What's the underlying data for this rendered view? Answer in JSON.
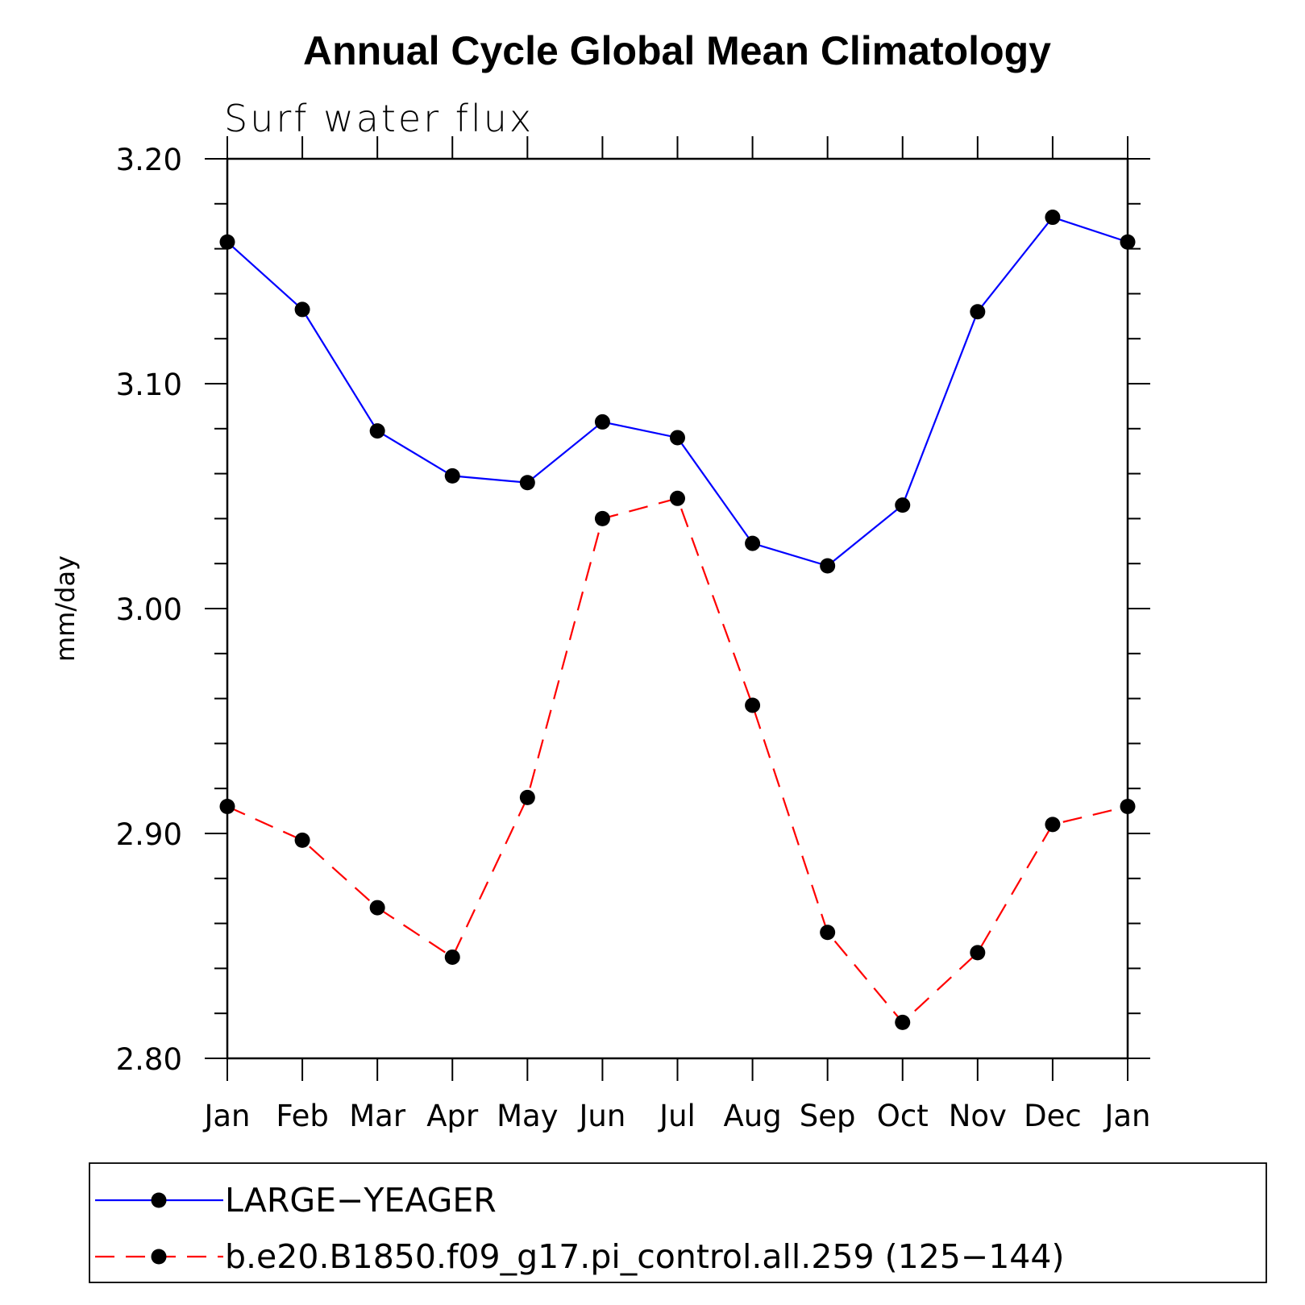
{
  "chart_data": {
    "type": "line",
    "title": "Annual Cycle Global Mean Climatology",
    "subtitle": "Surf water flux",
    "xlabel": "",
    "ylabel": "mm/day",
    "categories": [
      "Jan",
      "Feb",
      "Mar",
      "Apr",
      "May",
      "Jun",
      "Jul",
      "Aug",
      "Sep",
      "Oct",
      "Nov",
      "Dec",
      "Jan"
    ],
    "ylim": [
      2.8,
      3.2
    ],
    "yticks": [
      "2.80",
      "2.90",
      "3.00",
      "3.10",
      "3.20"
    ],
    "grid": false,
    "legend_position": "bottom",
    "series": [
      {
        "name": "LARGE−YEAGER",
        "color": "#0000ff",
        "dashed": false,
        "values": [
          3.163,
          3.133,
          3.079,
          3.059,
          3.056,
          3.083,
          3.076,
          3.029,
          3.019,
          3.046,
          3.132,
          3.174,
          3.163
        ]
      },
      {
        "name": "b.e20.B1850.f09_g17.pi_control.all.259 (125−144)",
        "color": "#ff0000",
        "dashed": true,
        "values": [
          2.912,
          2.897,
          2.867,
          2.845,
          2.916,
          3.04,
          3.049,
          2.957,
          2.856,
          2.816,
          2.847,
          2.904,
          2.912
        ]
      }
    ]
  }
}
